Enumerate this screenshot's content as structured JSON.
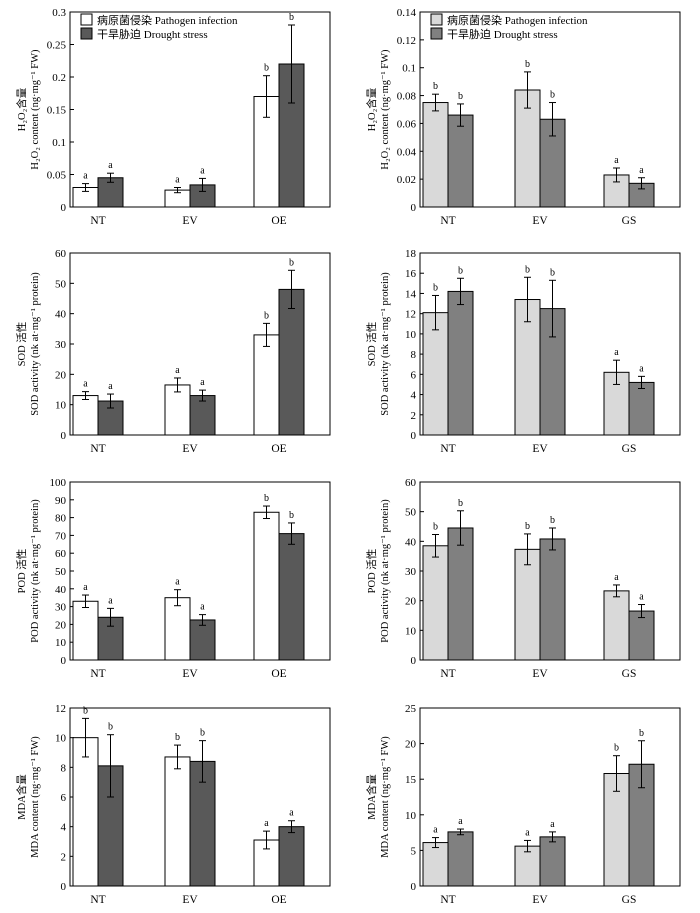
{
  "legend_labels": {
    "pathogen": "病原菌侵染 Pathogen infection",
    "drought": "干旱胁迫 Drought stress"
  },
  "colors": {
    "left_pathogen": "#ffffff",
    "left_drought": "#595959",
    "right_pathogen": "#d9d9d9",
    "right_drought": "#808080",
    "stroke": "#000000"
  },
  "chart_data": [
    {
      "id": "h2o2-left",
      "type": "bar",
      "categories": [
        "NT",
        "EV",
        "OE"
      ],
      "ylabel_cn": "H₂O₂含量",
      "ylabel_en": "H₂O₂ content (ng·mg⁻¹ FW)",
      "ylim": [
        0,
        0.3
      ],
      "yticks": [
        "0",
        "0.05",
        "0.1",
        "0.15",
        "0.2",
        "0.25",
        "0.3"
      ],
      "legend": true,
      "series": [
        {
          "name": "病原菌侵染 Pathogen infection",
          "values": [
            0.03,
            0.026,
            0.17
          ],
          "errors": [
            0.006,
            0.004,
            0.032
          ],
          "labels": [
            "a",
            "a",
            "b"
          ]
        },
        {
          "name": "干旱胁迫 Drought stress",
          "values": [
            0.045,
            0.034,
            0.22
          ],
          "errors": [
            0.007,
            0.01,
            0.06
          ],
          "labels": [
            "a",
            "a",
            "b"
          ]
        }
      ]
    },
    {
      "id": "h2o2-right",
      "type": "bar",
      "categories": [
        "NT",
        "EV",
        "GS"
      ],
      "ylabel_cn": "H₂O₂含量",
      "ylabel_en": "H₂O₂ content (ng·mg⁻¹ FW)",
      "ylim": [
        0,
        0.14
      ],
      "yticks": [
        "0",
        "0.02",
        "0.04",
        "0.06",
        "0.08",
        "0.1",
        "0.12",
        "0.14"
      ],
      "legend": true,
      "series": [
        {
          "name": "病原菌侵染 Pathogen infection",
          "values": [
            0.075,
            0.084,
            0.023
          ],
          "errors": [
            0.006,
            0.013,
            0.005
          ],
          "labels": [
            "b",
            "b",
            "a"
          ]
        },
        {
          "name": "干旱胁迫 Drought stress",
          "values": [
            0.066,
            0.063,
            0.017
          ],
          "errors": [
            0.008,
            0.012,
            0.004
          ],
          "labels": [
            "b",
            "b",
            "a"
          ]
        }
      ]
    },
    {
      "id": "sod-left",
      "type": "bar",
      "categories": [
        "NT",
        "EV",
        "OE"
      ],
      "ylabel_cn": "SOD 活性",
      "ylabel_en": "SOD activity (nk at·mg⁻¹ protein)",
      "ylim": [
        0,
        60
      ],
      "yticks": [
        "0",
        "10",
        "20",
        "30",
        "40",
        "50",
        "60"
      ],
      "legend": false,
      "series": [
        {
          "name": "病原菌侵染 Pathogen infection",
          "values": [
            13,
            16.5,
            33
          ],
          "errors": [
            1.3,
            2.3,
            3.8
          ],
          "labels": [
            "a",
            "a",
            "b"
          ]
        },
        {
          "name": "干旱胁迫 Drought stress",
          "values": [
            11.2,
            13,
            48
          ],
          "errors": [
            2.3,
            1.8,
            6.3
          ],
          "labels": [
            "a",
            "a",
            "b"
          ]
        }
      ]
    },
    {
      "id": "sod-right",
      "type": "bar",
      "categories": [
        "NT",
        "EV",
        "GS"
      ],
      "ylabel_cn": "SOD 活性",
      "ylabel_en": "SOD activity (nk at·mg⁻¹ protein)",
      "ylim": [
        0,
        18
      ],
      "yticks": [
        "0",
        "2",
        "4",
        "6",
        "8",
        "10",
        "12",
        "14",
        "16",
        "18"
      ],
      "legend": false,
      "series": [
        {
          "name": "病原菌侵染 Pathogen infection",
          "values": [
            12.1,
            13.4,
            6.2
          ],
          "errors": [
            1.7,
            2.2,
            1.2
          ],
          "labels": [
            "b",
            "b",
            "a"
          ]
        },
        {
          "name": "干旱胁迫 Drought stress",
          "values": [
            14.2,
            12.5,
            5.2
          ],
          "errors": [
            1.3,
            2.8,
            0.6
          ],
          "labels": [
            "b",
            "b",
            "a"
          ]
        }
      ]
    },
    {
      "id": "pod-left",
      "type": "bar",
      "categories": [
        "NT",
        "EV",
        "OE"
      ],
      "ylabel_cn": "POD 活性",
      "ylabel_en": "POD activity (nk at·mg⁻¹ protein)",
      "ylim": [
        0,
        100
      ],
      "yticks": [
        "0",
        "10",
        "20",
        "30",
        "40",
        "50",
        "60",
        "70",
        "80",
        "90",
        "100"
      ],
      "legend": false,
      "series": [
        {
          "name": "病原菌侵染 Pathogen infection",
          "values": [
            33,
            35,
            83
          ],
          "errors": [
            3.5,
            4.5,
            3.5
          ],
          "labels": [
            "a",
            "a",
            "b"
          ]
        },
        {
          "name": "干旱胁迫 Drought stress",
          "values": [
            24,
            22.5,
            71
          ],
          "errors": [
            5,
            3,
            6
          ],
          "labels": [
            "a",
            "a",
            "b"
          ]
        }
      ]
    },
    {
      "id": "pod-right",
      "type": "bar",
      "categories": [
        "NT",
        "EV",
        "GS"
      ],
      "ylabel_cn": "POD 活性",
      "ylabel_en": "POD activity (nk at·mg⁻¹ protein)",
      "ylim": [
        0,
        60
      ],
      "yticks": [
        "0",
        "10",
        "20",
        "30",
        "40",
        "50",
        "60"
      ],
      "legend": false,
      "series": [
        {
          "name": "病原菌侵染 Pathogen infection",
          "values": [
            38.5,
            37.3,
            23.3
          ],
          "errors": [
            3.8,
            5.2,
            2
          ],
          "labels": [
            "b",
            "b",
            "a"
          ]
        },
        {
          "name": "干旱胁迫 Drought stress",
          "values": [
            44.5,
            40.8,
            16.5
          ],
          "errors": [
            5.8,
            3.7,
            2.2
          ],
          "labels": [
            "b",
            "b",
            "a"
          ]
        }
      ]
    },
    {
      "id": "mda-left",
      "type": "bar",
      "categories": [
        "NT",
        "EV",
        "OE"
      ],
      "ylabel_cn": "MDA含量",
      "ylabel_en": "MDA content (ng·mg⁻¹ FW)",
      "ylim": [
        0,
        12
      ],
      "yticks": [
        "0",
        "2",
        "4",
        "6",
        "8",
        "10",
        "12"
      ],
      "legend": false,
      "series": [
        {
          "name": "病原菌侵染 Pathogen infection",
          "values": [
            10,
            8.7,
            3.1
          ],
          "errors": [
            1.3,
            0.8,
            0.6
          ],
          "labels": [
            "b",
            "b",
            "a"
          ]
        },
        {
          "name": "干旱胁迫 Drought stress",
          "values": [
            8.1,
            8.4,
            4
          ],
          "errors": [
            2.1,
            1.4,
            0.4
          ],
          "labels": [
            "b",
            "b",
            "a"
          ]
        }
      ]
    },
    {
      "id": "mda-right",
      "type": "bar",
      "categories": [
        "NT",
        "EV",
        "GS"
      ],
      "ylabel_cn": "MDA含量",
      "ylabel_en": "MDA content (ng·mg⁻¹ FW)",
      "ylim": [
        0,
        25
      ],
      "yticks": [
        "0",
        "5",
        "10",
        "15",
        "20",
        "25"
      ],
      "legend": false,
      "series": [
        {
          "name": "病原菌侵染 Pathogen infection",
          "values": [
            6.1,
            5.6,
            15.8
          ],
          "errors": [
            0.7,
            0.8,
            2.5
          ],
          "labels": [
            "a",
            "a",
            "b"
          ]
        },
        {
          "name": "干旱胁迫 Drought stress",
          "values": [
            7.6,
            6.9,
            17.1
          ],
          "errors": [
            0.4,
            0.7,
            3.3
          ],
          "labels": [
            "a",
            "a",
            "b"
          ]
        }
      ]
    }
  ]
}
